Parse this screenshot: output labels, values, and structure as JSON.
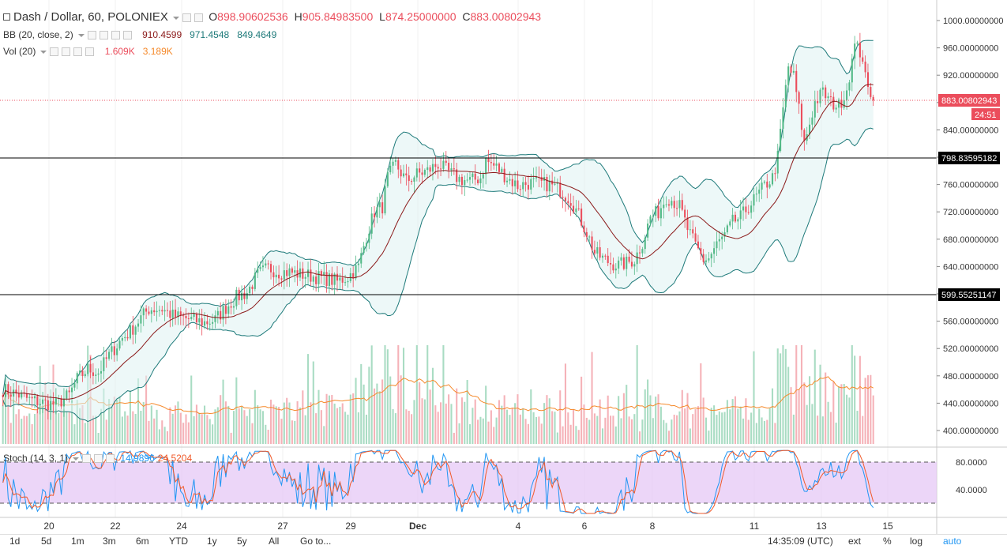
{
  "header": {
    "symbol": "Dash / Dollar, 60, POLONIEX",
    "open_label": "O",
    "open": "898.90602536",
    "high_label": "H",
    "high": "905.84983500",
    "low_label": "L",
    "low": "874.25000000",
    "close_label": "C",
    "close": "883.00802943"
  },
  "bb": {
    "label": "BB (20, close, 2)",
    "basis": "910.4599",
    "upper": "971.4548",
    "lower": "849.4649"
  },
  "vol": {
    "label": "Vol (20)",
    "v1": "1.609K",
    "v2": "3.189K"
  },
  "stoch": {
    "label": "Stoch (14, 3, 1)",
    "k": "14.9896",
    "d": "24.5204"
  },
  "price_axis": {
    "ticks": [
      "1000.00000000",
      "960.00000000",
      "920.00000000",
      "880.00000000",
      "840.00000000",
      "800.00000000",
      "760.00000000",
      "720.00000000",
      "680.00000000",
      "640.00000000",
      "600.00000000",
      "560.00000000",
      "520.00000000",
      "480.00000000",
      "440.00000000",
      "400.00000000"
    ],
    "last_price": "883.00802943",
    "countdown": "24:51",
    "hline_upper": "798.83595182",
    "hline_lower": "599.55251147"
  },
  "stoch_axis": {
    "ticks": [
      "80.0000",
      "40.0000"
    ]
  },
  "time_axis": {
    "ticks": [
      "20",
      "22",
      "24",
      "27",
      "29",
      "Dec",
      "4",
      "6",
      "8",
      "11",
      "13",
      "15"
    ]
  },
  "toolbar": {
    "ranges": [
      "1d",
      "5d",
      "1m",
      "3m",
      "6m",
      "YTD",
      "1y",
      "5y",
      "All"
    ],
    "goto": "Go to...",
    "time": "14:35:09 (UTC)",
    "ext": "ext",
    "pct": "%",
    "log": "log",
    "auto": "auto"
  },
  "colors": {
    "up": "#53b987",
    "down": "#eb4d5c",
    "bb_band": "#1e7a7a",
    "bb_basis": "#8b1a1a",
    "vol_ma": "#f5892a",
    "stoch_k": "#2196f3",
    "stoch_d": "#f05a2a",
    "stoch_fill": "#e6c8f5"
  },
  "chart_data": {
    "type": "candlestick",
    "ylim": [
      385,
      1015
    ],
    "xrange": [
      "Nov 19",
      "Dec 15"
    ],
    "path_points": [
      [
        0,
        460
      ],
      [
        6,
        452
      ],
      [
        10,
        445
      ],
      [
        16,
        440
      ],
      [
        20,
        438
      ],
      [
        25,
        452
      ],
      [
        28,
        475
      ],
      [
        32,
        490
      ],
      [
        36,
        485
      ],
      [
        40,
        510
      ],
      [
        45,
        535
      ],
      [
        48,
        545
      ],
      [
        52,
        565
      ],
      [
        55,
        578
      ],
      [
        60,
        578
      ],
      [
        64,
        568
      ],
      [
        70,
        563
      ],
      [
        76,
        558
      ],
      [
        80,
        562
      ],
      [
        84,
        580
      ],
      [
        88,
        595
      ],
      [
        92,
        602
      ],
      [
        96,
        628
      ],
      [
        100,
        638
      ],
      [
        104,
        632
      ],
      [
        108,
        632
      ],
      [
        113,
        628
      ],
      [
        118,
        625
      ],
      [
        122,
        622
      ],
      [
        126,
        618
      ],
      [
        130,
        625
      ],
      [
        134,
        640
      ],
      [
        137,
        685
      ],
      [
        140,
        720
      ],
      [
        143,
        728
      ],
      [
        145,
        770
      ],
      [
        148,
        790
      ],
      [
        152,
        765
      ],
      [
        156,
        775
      ],
      [
        160,
        780
      ],
      [
        164,
        790
      ],
      [
        168,
        778
      ],
      [
        172,
        768
      ],
      [
        176,
        765
      ],
      [
        180,
        770
      ],
      [
        182,
        795
      ],
      [
        186,
        785
      ],
      [
        190,
        770
      ],
      [
        194,
        758
      ],
      [
        198,
        762
      ],
      [
        202,
        762
      ],
      [
        206,
        760
      ],
      [
        210,
        752
      ],
      [
        214,
        738
      ],
      [
        217,
        715
      ],
      [
        220,
        690
      ],
      [
        223,
        660
      ],
      [
        226,
        652
      ],
      [
        229,
        645
      ],
      [
        232,
        642
      ],
      [
        235,
        645
      ],
      [
        238,
        650
      ],
      [
        241,
        675
      ],
      [
        244,
        712
      ],
      [
        247,
        720
      ],
      [
        250,
        742
      ],
      [
        252,
        738
      ],
      [
        255,
        728
      ],
      [
        258,
        695
      ],
      [
        261,
        670
      ],
      [
        264,
        650
      ],
      [
        266,
        652
      ],
      [
        269,
        672
      ],
      [
        272,
        685
      ],
      [
        275,
        705
      ],
      [
        278,
        712
      ],
      [
        281,
        728
      ],
      [
        284,
        742
      ],
      [
        287,
        758
      ],
      [
        290,
        770
      ],
      [
        292,
        800
      ],
      [
        294,
        870
      ],
      [
        296,
        932
      ],
      [
        298,
        918
      ],
      [
        300,
        870
      ],
      [
        302,
        820
      ],
      [
        304,
        850
      ],
      [
        306,
        880
      ],
      [
        309,
        895
      ],
      [
        312,
        880
      ],
      [
        315,
        875
      ],
      [
        318,
        900
      ],
      [
        320,
        940
      ],
      [
        322,
        975
      ],
      [
        324,
        930
      ],
      [
        326,
        910
      ],
      [
        328,
        883
      ]
    ],
    "horizontal_lines": [
      798.83595182,
      599.55251147
    ],
    "stoch_levels": [
      80,
      20
    ]
  }
}
